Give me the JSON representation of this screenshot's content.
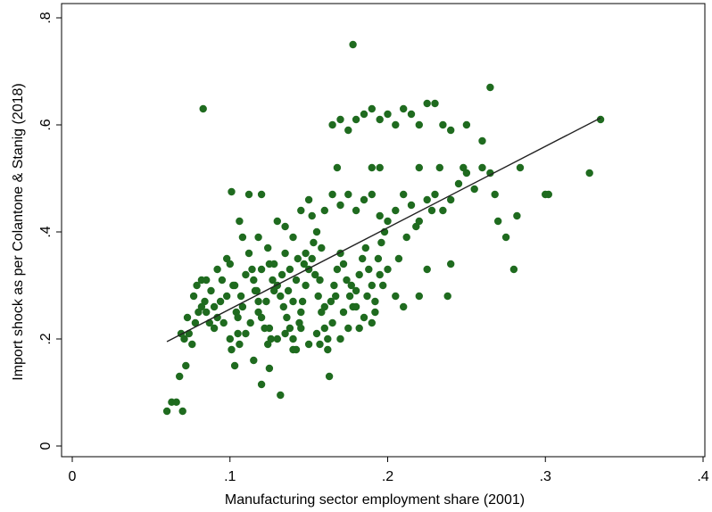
{
  "chart_data": {
    "type": "scatter",
    "xlabel": "Manufacturing sector employment share (2001)",
    "ylabel": "Import shock as per Colantone & Stanig (2018)",
    "xlim": [
      0,
      0.4
    ],
    "ylim": [
      0,
      0.8
    ],
    "x_ticks": [
      {
        "value": 0,
        "label": "0"
      },
      {
        "value": 0.1,
        "label": ".1"
      },
      {
        "value": 0.2,
        "label": ".2"
      },
      {
        "value": 0.3,
        "label": ".3"
      },
      {
        "value": 0.4,
        "label": ".4"
      }
    ],
    "y_ticks": [
      {
        "value": 0,
        "label": "0"
      },
      {
        "value": 0.2,
        "label": ".2"
      },
      {
        "value": 0.4,
        "label": ".4"
      },
      {
        "value": 0.6,
        "label": ".6"
      },
      {
        "value": 0.8,
        "label": ".8"
      }
    ],
    "grid": false,
    "point_color": "#1f6b1f",
    "fit_line": {
      "x": [
        0.06,
        0.335
      ],
      "y": [
        0.195,
        0.613
      ],
      "color": "#222222"
    },
    "series": [
      {
        "points": [
          [
            0.06,
            0.065
          ],
          [
            0.063,
            0.082
          ],
          [
            0.066,
            0.082
          ],
          [
            0.07,
            0.065
          ],
          [
            0.068,
            0.13
          ],
          [
            0.072,
            0.15
          ],
          [
            0.071,
            0.2
          ],
          [
            0.074,
            0.21
          ],
          [
            0.076,
            0.19
          ],
          [
            0.078,
            0.23
          ],
          [
            0.08,
            0.25
          ],
          [
            0.082,
            0.26
          ],
          [
            0.073,
            0.24
          ],
          [
            0.069,
            0.21
          ],
          [
            0.077,
            0.28
          ],
          [
            0.079,
            0.3
          ],
          [
            0.082,
            0.31
          ],
          [
            0.085,
            0.31
          ],
          [
            0.088,
            0.29
          ],
          [
            0.084,
            0.27
          ],
          [
            0.083,
            0.63
          ],
          [
            0.09,
            0.22
          ],
          [
            0.092,
            0.24
          ],
          [
            0.094,
            0.27
          ],
          [
            0.096,
            0.23
          ],
          [
            0.098,
            0.35
          ],
          [
            0.1,
            0.34
          ],
          [
            0.102,
            0.3
          ],
          [
            0.104,
            0.25
          ],
          [
            0.1,
            0.2
          ],
          [
            0.101,
            0.18
          ],
          [
            0.103,
            0.15
          ],
          [
            0.105,
            0.21
          ],
          [
            0.106,
            0.19
          ],
          [
            0.108,
            0.26
          ],
          [
            0.11,
            0.32
          ],
          [
            0.112,
            0.36
          ],
          [
            0.114,
            0.33
          ],
          [
            0.116,
            0.29
          ],
          [
            0.118,
            0.27
          ],
          [
            0.12,
            0.24
          ],
          [
            0.122,
            0.22
          ],
          [
            0.124,
            0.19
          ],
          [
            0.126,
            0.2
          ],
          [
            0.12,
            0.47
          ],
          [
            0.112,
            0.47
          ],
          [
            0.108,
            0.39
          ],
          [
            0.106,
            0.42
          ],
          [
            0.101,
            0.475
          ],
          [
            0.118,
            0.39
          ],
          [
            0.124,
            0.37
          ],
          [
            0.128,
            0.34
          ],
          [
            0.13,
            0.3
          ],
          [
            0.132,
            0.28
          ],
          [
            0.134,
            0.26
          ],
          [
            0.136,
            0.24
          ],
          [
            0.138,
            0.22
          ],
          [
            0.14,
            0.2
          ],
          [
            0.142,
            0.18
          ],
          [
            0.144,
            0.23
          ],
          [
            0.146,
            0.27
          ],
          [
            0.148,
            0.3
          ],
          [
            0.15,
            0.33
          ],
          [
            0.152,
            0.35
          ],
          [
            0.154,
            0.32
          ],
          [
            0.156,
            0.28
          ],
          [
            0.158,
            0.25
          ],
          [
            0.16,
            0.22
          ],
          [
            0.162,
            0.2
          ],
          [
            0.164,
            0.27
          ],
          [
            0.166,
            0.3
          ],
          [
            0.168,
            0.33
          ],
          [
            0.17,
            0.36
          ],
          [
            0.172,
            0.34
          ],
          [
            0.174,
            0.31
          ],
          [
            0.176,
            0.28
          ],
          [
            0.178,
            0.26
          ],
          [
            0.18,
            0.29
          ],
          [
            0.182,
            0.32
          ],
          [
            0.184,
            0.35
          ],
          [
            0.186,
            0.37
          ],
          [
            0.188,
            0.33
          ],
          [
            0.19,
            0.3
          ],
          [
            0.192,
            0.27
          ],
          [
            0.194,
            0.35
          ],
          [
            0.196,
            0.38
          ],
          [
            0.198,
            0.4
          ],
          [
            0.13,
            0.42
          ],
          [
            0.135,
            0.41
          ],
          [
            0.14,
            0.39
          ],
          [
            0.145,
            0.44
          ],
          [
            0.15,
            0.46
          ],
          [
            0.152,
            0.43
          ],
          [
            0.155,
            0.4
          ],
          [
            0.16,
            0.44
          ],
          [
            0.165,
            0.47
          ],
          [
            0.17,
            0.45
          ],
          [
            0.175,
            0.47
          ],
          [
            0.18,
            0.44
          ],
          [
            0.185,
            0.46
          ],
          [
            0.19,
            0.47
          ],
          [
            0.195,
            0.43
          ],
          [
            0.2,
            0.42
          ],
          [
            0.205,
            0.44
          ],
          [
            0.21,
            0.47
          ],
          [
            0.215,
            0.45
          ],
          [
            0.22,
            0.42
          ],
          [
            0.225,
            0.46
          ],
          [
            0.23,
            0.47
          ],
          [
            0.235,
            0.44
          ],
          [
            0.24,
            0.46
          ],
          [
            0.245,
            0.49
          ],
          [
            0.25,
            0.51
          ],
          [
            0.255,
            0.48
          ],
          [
            0.26,
            0.52
          ],
          [
            0.265,
            0.51
          ],
          [
            0.268,
            0.47
          ],
          [
            0.27,
            0.42
          ],
          [
            0.275,
            0.39
          ],
          [
            0.28,
            0.33
          ],
          [
            0.282,
            0.43
          ],
          [
            0.284,
            0.52
          ],
          [
            0.3,
            0.47
          ],
          [
            0.302,
            0.47
          ],
          [
            0.328,
            0.51
          ],
          [
            0.335,
            0.61
          ],
          [
            0.265,
            0.67
          ],
          [
            0.26,
            0.57
          ],
          [
            0.25,
            0.6
          ],
          [
            0.24,
            0.59
          ],
          [
            0.235,
            0.6
          ],
          [
            0.23,
            0.64
          ],
          [
            0.225,
            0.64
          ],
          [
            0.22,
            0.6
          ],
          [
            0.215,
            0.62
          ],
          [
            0.21,
            0.63
          ],
          [
            0.205,
            0.6
          ],
          [
            0.2,
            0.62
          ],
          [
            0.195,
            0.61
          ],
          [
            0.19,
            0.63
          ],
          [
            0.185,
            0.62
          ],
          [
            0.18,
            0.61
          ],
          [
            0.175,
            0.59
          ],
          [
            0.17,
            0.61
          ],
          [
            0.165,
            0.6
          ],
          [
            0.168,
            0.52
          ],
          [
            0.178,
            0.75
          ],
          [
            0.19,
            0.52
          ],
          [
            0.195,
            0.52
          ],
          [
            0.22,
            0.52
          ],
          [
            0.233,
            0.52
          ],
          [
            0.248,
            0.52
          ],
          [
            0.225,
            0.33
          ],
          [
            0.24,
            0.34
          ],
          [
            0.238,
            0.28
          ],
          [
            0.22,
            0.28
          ],
          [
            0.21,
            0.26
          ],
          [
            0.205,
            0.28
          ],
          [
            0.2,
            0.33
          ],
          [
            0.195,
            0.32
          ],
          [
            0.19,
            0.23
          ],
          [
            0.185,
            0.24
          ],
          [
            0.18,
            0.26
          ],
          [
            0.175,
            0.22
          ],
          [
            0.17,
            0.2
          ],
          [
            0.165,
            0.23
          ],
          [
            0.163,
            0.13
          ],
          [
            0.155,
            0.21
          ],
          [
            0.15,
            0.19
          ],
          [
            0.145,
            0.22
          ],
          [
            0.14,
            0.18
          ],
          [
            0.135,
            0.21
          ],
          [
            0.13,
            0.2
          ],
          [
            0.132,
            0.095
          ],
          [
            0.125,
            0.22
          ],
          [
            0.12,
            0.115
          ],
          [
            0.125,
            0.145
          ],
          [
            0.115,
            0.16
          ],
          [
            0.11,
            0.21
          ],
          [
            0.105,
            0.24
          ],
          [
            0.098,
            0.28
          ],
          [
            0.095,
            0.31
          ],
          [
            0.092,
            0.33
          ],
          [
            0.09,
            0.26
          ],
          [
            0.087,
            0.23
          ],
          [
            0.085,
            0.25
          ],
          [
            0.142,
            0.31
          ],
          [
            0.147,
            0.34
          ],
          [
            0.157,
            0.31
          ],
          [
            0.167,
            0.28
          ],
          [
            0.177,
            0.3
          ],
          [
            0.187,
            0.28
          ],
          [
            0.197,
            0.3
          ],
          [
            0.207,
            0.35
          ],
          [
            0.212,
            0.39
          ],
          [
            0.218,
            0.41
          ],
          [
            0.228,
            0.44
          ],
          [
            0.158,
            0.37
          ],
          [
            0.153,
            0.38
          ],
          [
            0.148,
            0.36
          ],
          [
            0.143,
            0.35
          ],
          [
            0.138,
            0.33
          ],
          [
            0.133,
            0.32
          ],
          [
            0.128,
            0.29
          ],
          [
            0.123,
            0.27
          ],
          [
            0.118,
            0.25
          ],
          [
            0.113,
            0.23
          ],
          [
            0.107,
            0.28
          ],
          [
            0.103,
            0.3
          ],
          [
            0.115,
            0.31
          ],
          [
            0.12,
            0.33
          ],
          [
            0.125,
            0.34
          ],
          [
            0.135,
            0.36
          ],
          [
            0.14,
            0.27
          ],
          [
            0.145,
            0.25
          ],
          [
            0.16,
            0.26
          ],
          [
            0.172,
            0.25
          ],
          [
            0.182,
            0.22
          ],
          [
            0.192,
            0.25
          ],
          [
            0.157,
            0.19
          ],
          [
            0.162,
            0.18
          ],
          [
            0.137,
            0.29
          ],
          [
            0.127,
            0.31
          ],
          [
            0.117,
            0.29
          ]
        ]
      }
    ]
  }
}
